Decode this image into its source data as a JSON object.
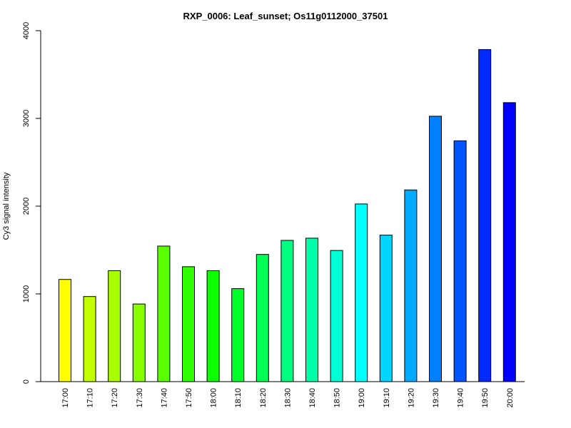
{
  "chart_data": {
    "type": "bar",
    "title": "RXP_0006: Leaf_sunset; Os11g0112000_37501",
    "xlabel": "",
    "ylabel": "Cy3 signal intensity",
    "ylim": [
      0,
      4000
    ],
    "yticks": [
      0,
      1000,
      2000,
      3000,
      4000
    ],
    "categories": [
      "17:00",
      "17:10",
      "17:20",
      "17:30",
      "17:40",
      "17:50",
      "18:00",
      "18:10",
      "18:20",
      "18:30",
      "18:40",
      "18:50",
      "19:00",
      "19:10",
      "19:20",
      "19:30",
      "19:40",
      "19:50",
      "20:00"
    ],
    "values": [
      1165,
      970,
      1265,
      885,
      1545,
      1310,
      1265,
      1060,
      1450,
      1610,
      1635,
      1495,
      2025,
      1670,
      2185,
      3025,
      2745,
      3785,
      3180
    ],
    "colors": [
      "#ffff00",
      "#c3ff00",
      "#a8ff00",
      "#87ff00",
      "#5aff00",
      "#30ff00",
      "#0cff00",
      "#00ff2a",
      "#00ff55",
      "#00ff80",
      "#00ffaa",
      "#00ffd4",
      "#00ffff",
      "#00d4ff",
      "#00aaff",
      "#0080ff",
      "#0055ff",
      "#002aff",
      "#0000ff"
    ],
    "grid": false,
    "legend": "none"
  }
}
